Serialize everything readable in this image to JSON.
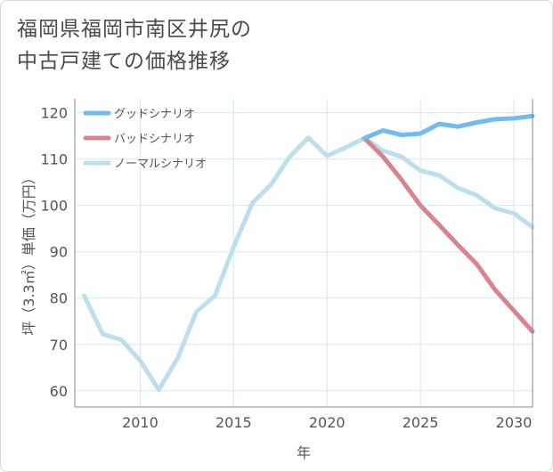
{
  "title_lines": [
    "福岡県福岡市南区井尻の",
    "中古戸建ての価格推移"
  ],
  "colors": {
    "good": "#6fbbf2",
    "bad": "#d9838d",
    "normal": "#bcdfee",
    "grid": "#d8e5ee",
    "axis": "#555555"
  },
  "chart_data": {
    "type": "line",
    "title": "福岡県福岡市南区井尻の中古戸建ての価格推移",
    "xlabel": "年",
    "ylabel": "坪（3.3㎡）単価（万円）",
    "xlim": [
      2006.5,
      2031
    ],
    "ylim": [
      56.5,
      123
    ],
    "x_ticks": [
      2010,
      2015,
      2020,
      2025,
      2030
    ],
    "y_ticks": [
      60,
      70,
      80,
      90,
      100,
      110,
      120
    ],
    "grid": true,
    "legend_position": "top-left",
    "series": [
      {
        "name": "グッドシナリオ",
        "color": "#6fbbf2",
        "x": [
          2022,
          2023,
          2024,
          2025,
          2026,
          2027,
          2028,
          2029,
          2030,
          2031
        ],
        "y": [
          114.5,
          116.2,
          115.2,
          115.5,
          117.6,
          117.0,
          117.9,
          118.6,
          118.8,
          119.3
        ]
      },
      {
        "name": "バッドシナリオ",
        "color": "#d9838d",
        "x": [
          2022,
          2023,
          2024,
          2025,
          2026,
          2027,
          2028,
          2029,
          2030,
          2031
        ],
        "y": [
          114.5,
          110.5,
          105.5,
          100.0,
          95.8,
          91.5,
          87.4,
          81.8,
          77.3,
          72.8
        ]
      },
      {
        "name": "ノーマルシナリオ",
        "color": "#bcdfee",
        "x": [
          2007,
          2008,
          2009,
          2010,
          2011,
          2012,
          2013,
          2014,
          2015,
          2016,
          2017,
          2018,
          2019,
          2020,
          2021,
          2022,
          2023,
          2024,
          2025,
          2026,
          2027,
          2028,
          2029,
          2030,
          2031
        ],
        "y": [
          80.5,
          72.2,
          71.0,
          66.5,
          60.2,
          67.0,
          77.0,
          80.5,
          91.0,
          100.5,
          104.5,
          110.5,
          114.6,
          110.7,
          112.5,
          114.5,
          111.8,
          110.5,
          107.5,
          106.5,
          103.8,
          102.2,
          99.4,
          98.3,
          95.3
        ]
      }
    ]
  }
}
